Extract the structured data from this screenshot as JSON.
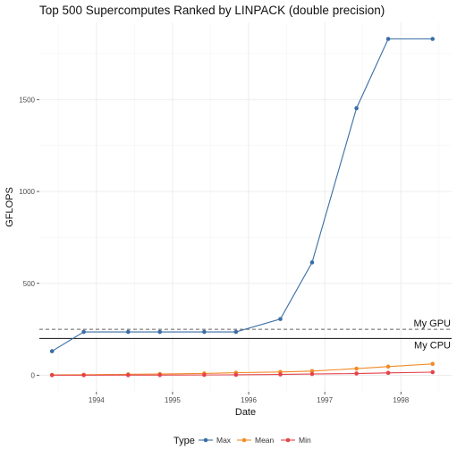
{
  "chart_data": {
    "type": "line",
    "title": "Top 500 Supercomputes Ranked by LINPACK (double precision)",
    "xlabel": "Date",
    "ylabel": "GFLOPS",
    "x_ticks": [
      "1994",
      "1995",
      "1996",
      "1997",
      "1998"
    ],
    "y_ticks": [
      0,
      500,
      1000,
      1500
    ],
    "xlim": [
      "1993-04-01",
      "1998-09-01"
    ],
    "ylim": [
      -90,
      1920
    ],
    "x": [
      "1993-06-01",
      "1993-11-01",
      "1994-06-01",
      "1994-11-01",
      "1995-06-01",
      "1995-11-01",
      "1996-06-01",
      "1996-11-01",
      "1997-06-01",
      "1997-11-01",
      "1998-06-01"
    ],
    "series": [
      {
        "name": "Max",
        "color": "#3a6ea5",
        "values": [
          131,
          236,
          236,
          236,
          236,
          236,
          306,
          614,
          1453,
          1830,
          1830
        ]
      },
      {
        "name": "Mean",
        "color": "#f08c28",
        "values": [
          2,
          3,
          5,
          7,
          10,
          14,
          18,
          23,
          36,
          47,
          62
        ]
      },
      {
        "name": "Min",
        "color": "#e4424a",
        "values": [
          0.4,
          0.5,
          0.8,
          1.1,
          1.9,
          2.6,
          4.6,
          7.0,
          9.5,
          13,
          17
        ]
      }
    ],
    "reference_lines": [
      {
        "label": "My GPU",
        "value": 250,
        "dash": "dashed"
      },
      {
        "label": "My CPU",
        "value": 200,
        "dash": "solid"
      }
    ],
    "legend": {
      "title": "Type",
      "position": "bottom"
    },
    "grid": true
  }
}
